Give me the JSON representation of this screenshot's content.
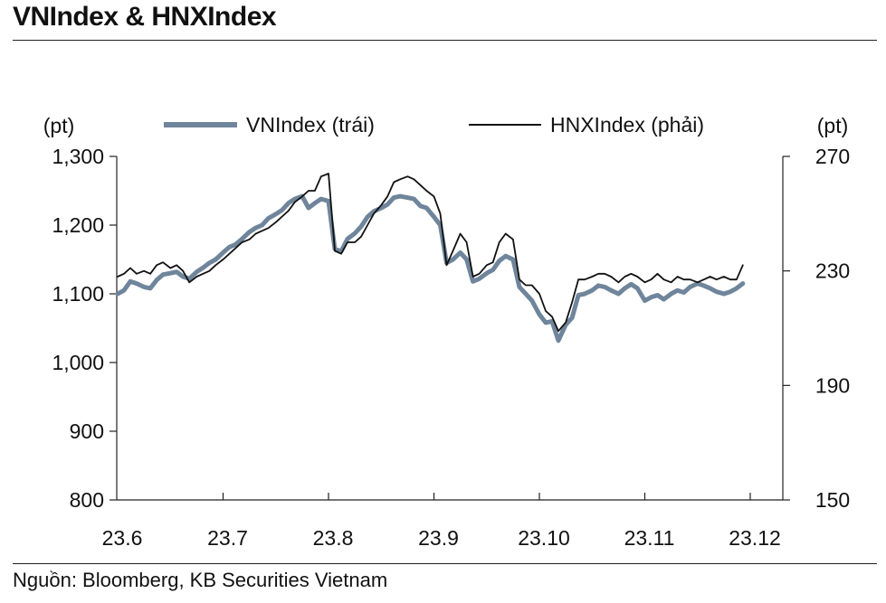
{
  "title": "VNIndex & HNXIndex",
  "source": "Nguồn: Bloomberg, KB Securities Vietnam",
  "chart_data": {
    "type": "line",
    "left_unit": "(pt)",
    "right_unit": "(pt)",
    "x_tick_labels": [
      "23.6",
      "23.7",
      "23.8",
      "23.9",
      "23.10",
      "23.11",
      "23.12"
    ],
    "y_left": {
      "ylim": [
        800,
        1300
      ],
      "ticks": [
        800,
        900,
        1000,
        1100,
        1200,
        1300
      ],
      "tick_labels": [
        "800",
        "900",
        "1,000",
        "1,100",
        "1,200",
        "1,300"
      ]
    },
    "y_right": {
      "ylim": [
        150,
        270
      ],
      "ticks": [
        150,
        190,
        230,
        270
      ],
      "tick_labels": [
        "150",
        "190",
        "230",
        "270"
      ]
    },
    "grid": false,
    "legend_position": "top",
    "series": [
      {
        "name": "VNIndex (trái)",
        "axis": "left",
        "color": "#6f859b",
        "x": [
          0.0,
          0.06,
          0.12,
          0.18,
          0.25,
          0.31,
          0.37,
          0.43,
          0.5,
          0.56,
          0.62,
          0.68,
          0.75,
          0.81,
          0.87,
          0.93,
          1.0,
          1.06,
          1.12,
          1.18,
          1.25,
          1.31,
          1.37,
          1.43,
          1.5,
          1.56,
          1.62,
          1.68,
          1.75,
          1.81,
          1.87,
          1.93,
          2.0,
          2.06,
          2.12,
          2.18,
          2.25,
          2.31,
          2.37,
          2.43,
          2.5,
          2.56,
          2.62,
          2.68,
          2.75,
          2.81,
          2.87,
          2.93,
          3.0,
          3.06,
          3.12,
          3.18,
          3.25,
          3.31,
          3.37,
          3.43,
          3.5,
          3.56,
          3.62,
          3.68,
          3.75,
          3.81,
          3.87,
          3.93,
          4.0,
          4.06,
          4.12,
          4.18,
          4.25,
          4.31,
          4.37,
          4.43,
          4.5,
          4.56,
          4.62,
          4.68,
          4.75,
          4.81,
          4.87,
          4.93,
          5.0,
          5.06,
          5.12,
          5.18,
          5.25,
          5.31,
          5.37,
          5.43,
          5.5,
          5.56,
          5.62,
          5.68,
          5.75,
          5.81,
          5.87,
          5.93
        ],
        "values": [
          1100,
          1105,
          1118,
          1115,
          1110,
          1108,
          1120,
          1128,
          1130,
          1132,
          1125,
          1122,
          1132,
          1138,
          1145,
          1150,
          1160,
          1168,
          1172,
          1180,
          1190,
          1196,
          1200,
          1210,
          1216,
          1222,
          1232,
          1238,
          1242,
          1225,
          1232,
          1238,
          1235,
          1165,
          1162,
          1180,
          1188,
          1198,
          1212,
          1220,
          1225,
          1230,
          1240,
          1242,
          1240,
          1238,
          1228,
          1225,
          1212,
          1200,
          1145,
          1150,
          1160,
          1150,
          1118,
          1122,
          1130,
          1135,
          1148,
          1155,
          1150,
          1110,
          1100,
          1090,
          1070,
          1058,
          1060,
          1032,
          1055,
          1065,
          1098,
          1100,
          1105,
          1112,
          1110,
          1105,
          1100,
          1108,
          1114,
          1108,
          1090,
          1095,
          1098,
          1092,
          1100,
          1105,
          1102,
          1110,
          1115,
          1112,
          1108,
          1103,
          1100,
          1103,
          1108,
          1115
        ]
      },
      {
        "name": "HNXIndex (phải)",
        "axis": "right",
        "color": "#111111",
        "x": [
          0.0,
          0.06,
          0.12,
          0.18,
          0.25,
          0.31,
          0.37,
          0.43,
          0.5,
          0.56,
          0.62,
          0.68,
          0.75,
          0.81,
          0.87,
          0.93,
          1.0,
          1.06,
          1.12,
          1.18,
          1.25,
          1.31,
          1.37,
          1.43,
          1.5,
          1.56,
          1.62,
          1.68,
          1.75,
          1.81,
          1.87,
          1.93,
          2.0,
          2.06,
          2.12,
          2.18,
          2.25,
          2.31,
          2.37,
          2.43,
          2.5,
          2.56,
          2.62,
          2.68,
          2.75,
          2.81,
          2.87,
          2.93,
          3.0,
          3.06,
          3.12,
          3.18,
          3.25,
          3.31,
          3.37,
          3.43,
          3.5,
          3.56,
          3.62,
          3.68,
          3.75,
          3.81,
          3.87,
          3.93,
          4.0,
          4.06,
          4.12,
          4.18,
          4.25,
          4.31,
          4.37,
          4.43,
          4.5,
          4.56,
          4.62,
          4.68,
          4.75,
          4.81,
          4.87,
          4.93,
          5.0,
          5.06,
          5.12,
          5.18,
          5.25,
          5.31,
          5.37,
          5.43,
          5.5,
          5.56,
          5.62,
          5.68,
          5.75,
          5.81,
          5.87,
          5.93
        ],
        "values": [
          228,
          229,
          231,
          229,
          230,
          229,
          232,
          233,
          231,
          232,
          230,
          226,
          228,
          229,
          230,
          232,
          234,
          236,
          238,
          240,
          241,
          243,
          244,
          245,
          247,
          249,
          251,
          254,
          256,
          258,
          258,
          263,
          264,
          237,
          236,
          240,
          240,
          242,
          246,
          250,
          253,
          256,
          261,
          262,
          263,
          262,
          260,
          258,
          256,
          250,
          232,
          237,
          243,
          240,
          228,
          229,
          232,
          233,
          240,
          243,
          241,
          227,
          225,
          225,
          222,
          216,
          214,
          209,
          212,
          219,
          227,
          227,
          228,
          229,
          229,
          228,
          226,
          228,
          229,
          228,
          226,
          227,
          229,
          227,
          226,
          228,
          227,
          227,
          226,
          227,
          228,
          227,
          228,
          227,
          227,
          232
        ]
      }
    ]
  }
}
